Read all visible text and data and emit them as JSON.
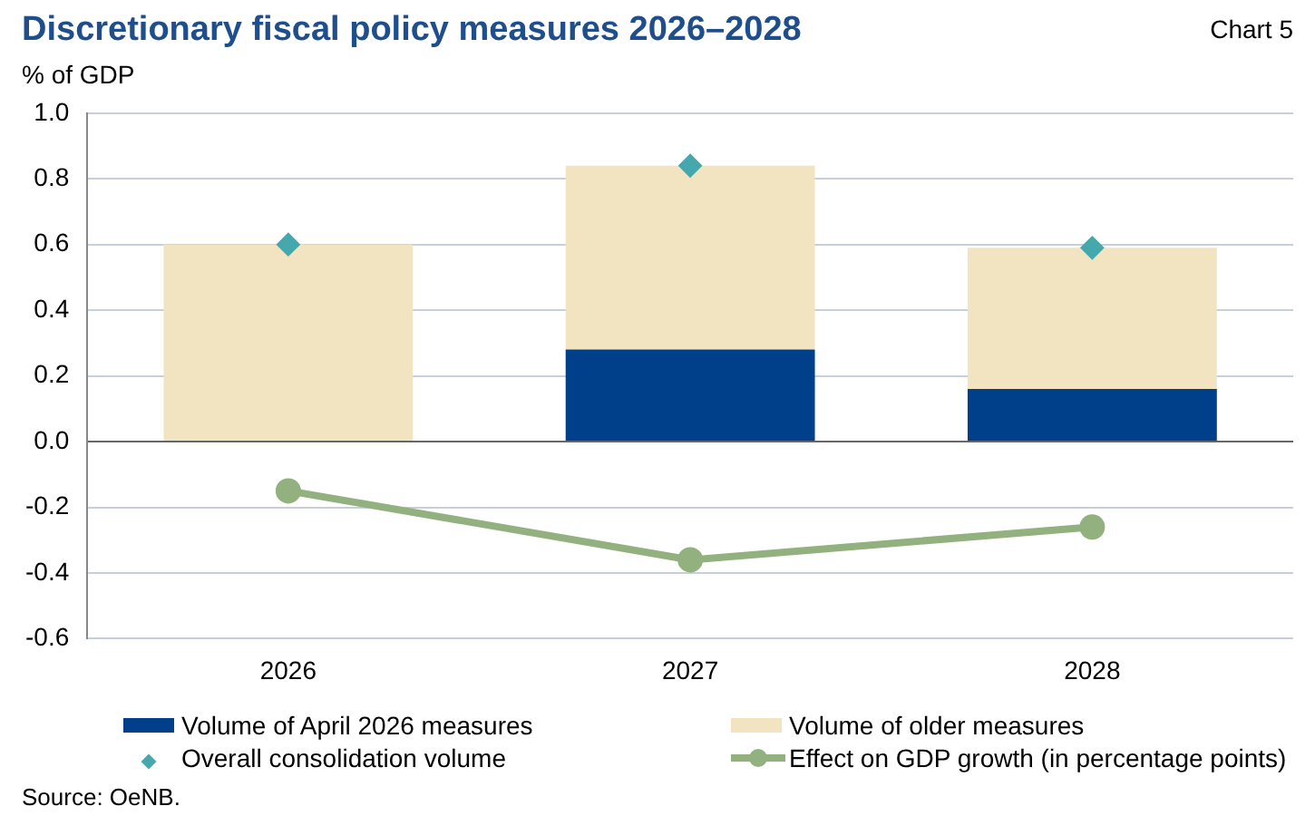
{
  "chart_data": {
    "type": "bar",
    "title": "Discretionary fiscal policy measures 2026–2028",
    "ylabel": "% of GDP",
    "annotations": [
      "Chart 5",
      "Source: OeNB."
    ],
    "categories": [
      "2026",
      "2027",
      "2028"
    ],
    "stacked": true,
    "series": [
      {
        "name": "Volume of April 2026 measures",
        "color": "#00408b",
        "values": [
          0,
          0.28,
          0.16
        ]
      },
      {
        "name": "Volume of older measures",
        "color": "#f2e4c0",
        "values": [
          0.6,
          0.56,
          0.43
        ]
      },
      {
        "name": "Overall consolidation volume",
        "type": "scatter",
        "marker": "diamond",
        "color": "#45a8ad",
        "values": [
          0.6,
          0.84,
          0.59
        ]
      },
      {
        "name": "Effect on GDP growth (in percentage points)",
        "type": "line",
        "marker": "circle",
        "line_style": "solid",
        "color": "#93b17f",
        "values": [
          -0.15,
          -0.36,
          -0.26
        ]
      }
    ],
    "ylim": [
      -0.6,
      1.0
    ],
    "yticks": [
      {
        "value": -0.6,
        "label": "-0.6"
      },
      {
        "value": -0.4,
        "label": "-0.4"
      },
      {
        "value": -0.2,
        "label": "-0.2"
      },
      {
        "value": 0,
        "label": "0.0"
      },
      {
        "value": 0.2,
        "label": "0.2"
      },
      {
        "value": 0.4,
        "label": "0.4"
      },
      {
        "value": 0.6,
        "label": "0.6"
      },
      {
        "value": 0.8,
        "label": "0.8"
      },
      {
        "value": 1,
        "label": "1.0"
      }
    ],
    "grid": "y",
    "legend": "bottom"
  }
}
